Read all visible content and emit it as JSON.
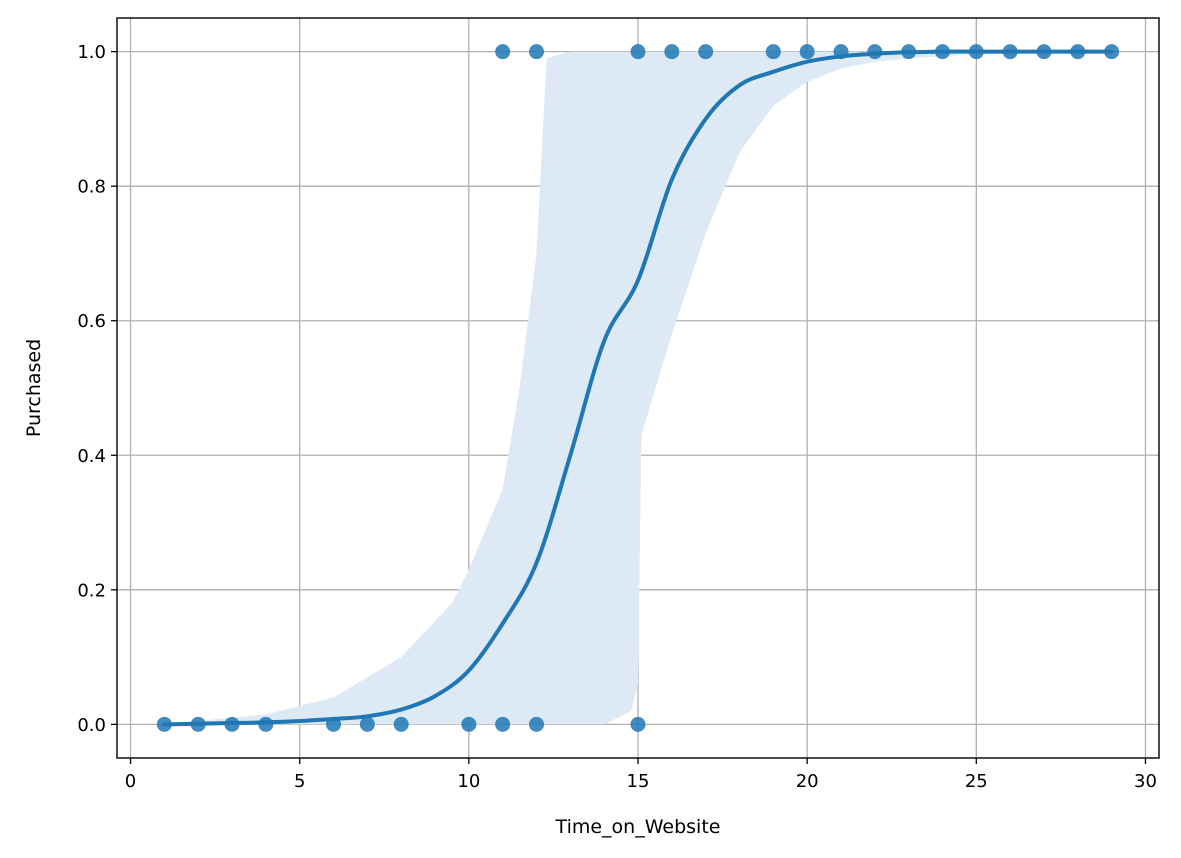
{
  "chart_data": {
    "type": "scatter",
    "title": "",
    "xlabel": "Time_on_Website",
    "ylabel": "Purchased",
    "xlim": [
      -0.4,
      30.4
    ],
    "ylim": [
      -0.05,
      1.05
    ],
    "xticks": [
      0,
      5,
      10,
      15,
      20,
      25,
      30
    ],
    "xtick_labels": [
      "0",
      "5",
      "10",
      "15",
      "20",
      "25",
      "30"
    ],
    "yticks": [
      0.0,
      0.2,
      0.4,
      0.6,
      0.8,
      1.0
    ],
    "ytick_labels": [
      "0.0",
      "0.2",
      "0.4",
      "0.6",
      "0.8",
      "1.0"
    ],
    "grid": true,
    "colors": {
      "points": "#1f77b4",
      "line": "#1f77b4",
      "band": "#dde9f4",
      "grid": "#b0b0b0"
    },
    "points": [
      {
        "x": 1,
        "y": 0
      },
      {
        "x": 2,
        "y": 0
      },
      {
        "x": 3,
        "y": 0
      },
      {
        "x": 4,
        "y": 0
      },
      {
        "x": 6,
        "y": 0
      },
      {
        "x": 7,
        "y": 0
      },
      {
        "x": 8,
        "y": 0
      },
      {
        "x": 10,
        "y": 0
      },
      {
        "x": 11,
        "y": 0
      },
      {
        "x": 12,
        "y": 0
      },
      {
        "x": 15,
        "y": 0
      },
      {
        "x": 11,
        "y": 1
      },
      {
        "x": 12,
        "y": 1
      },
      {
        "x": 15,
        "y": 1
      },
      {
        "x": 16,
        "y": 1
      },
      {
        "x": 17,
        "y": 1
      },
      {
        "x": 19,
        "y": 1
      },
      {
        "x": 20,
        "y": 1
      },
      {
        "x": 21,
        "y": 1
      },
      {
        "x": 22,
        "y": 1
      },
      {
        "x": 23,
        "y": 1
      },
      {
        "x": 24,
        "y": 1
      },
      {
        "x": 25,
        "y": 1
      },
      {
        "x": 26,
        "y": 1
      },
      {
        "x": 27,
        "y": 1
      },
      {
        "x": 28,
        "y": 1
      },
      {
        "x": 29,
        "y": 1
      }
    ],
    "fit_curve": {
      "x": [
        1,
        2,
        3,
        4,
        5,
        6,
        7,
        8,
        9,
        10,
        11,
        12,
        13,
        14,
        15,
        16,
        17,
        18,
        19,
        20,
        21,
        22,
        23,
        24,
        25,
        26,
        27,
        28,
        29
      ],
      "y": [
        0.0,
        0.001,
        0.002,
        0.003,
        0.005,
        0.008,
        0.012,
        0.022,
        0.042,
        0.08,
        0.15,
        0.24,
        0.4,
        0.57,
        0.66,
        0.81,
        0.9,
        0.95,
        0.97,
        0.985,
        0.993,
        0.997,
        0.999,
        1.0,
        1.0,
        1.0,
        1.0,
        1.0,
        1.0
      ]
    },
    "confidence_band": {
      "x": [
        1,
        4,
        6,
        8,
        9.5,
        10,
        11,
        11.5,
        12,
        12.3,
        13,
        14,
        14.8,
        15,
        15.1,
        16,
        17,
        18,
        19,
        20,
        21,
        22,
        23,
        24,
        25,
        29
      ],
      "upper": [
        0.0,
        0.015,
        0.04,
        0.1,
        0.18,
        0.23,
        0.35,
        0.5,
        0.7,
        0.99,
        1.0,
        1.0,
        1.0,
        1.0,
        1.0,
        1.0,
        1.0,
        1.0,
        1.0,
        1.0,
        1.0,
        1.0,
        1.0,
        1.0,
        1.0,
        1.0
      ],
      "lower": [
        0.0,
        0.0,
        0.0,
        0.0,
        0.0,
        0.0,
        0.0,
        0.0,
        0.0,
        0.0,
        0.0,
        0.0,
        0.02,
        0.06,
        0.43,
        0.58,
        0.73,
        0.85,
        0.92,
        0.955,
        0.975,
        0.985,
        0.99,
        0.993,
        0.996,
        1.0
      ]
    }
  }
}
